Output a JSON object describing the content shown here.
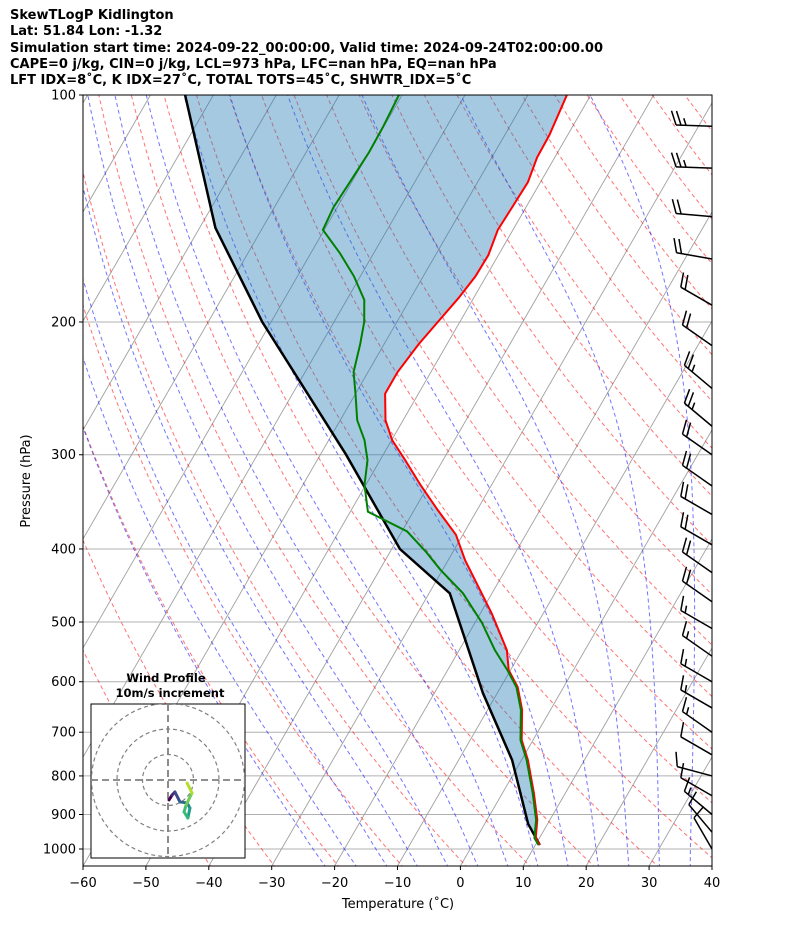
{
  "header": {
    "lines": [
      "SkewTLogP Kidlington",
      "Lat: 51.84   Lon: -1.32",
      "Simulation start time: 2024-09-22_00:00:00, Valid time: 2024-09-24T02:00:00.00",
      "CAPE=0 j/kg, CIN=0 j/kg, LCL=973 hPa, LFC=nan hPa, EQ=nan hPa",
      "LFT IDX=8˚C, K IDX=27˚C, TOTAL TOTS=45˚C, SHWTR_IDX=5˚C"
    ]
  },
  "chart_data": {
    "type": "line",
    "subtype": "skew-T log-P",
    "xlabel": "Temperature (˚C)",
    "ylabel": "Pressure (hPa)",
    "xlim": [
      -60,
      40
    ],
    "ylim": [
      1053,
      100
    ],
    "xticks": [
      "−60",
      "−50",
      "−40",
      "−30",
      "−20",
      "−10",
      "0",
      "10",
      "20",
      "30",
      "40"
    ],
    "xtick_values": [
      -60,
      -50,
      -40,
      -30,
      -20,
      -10,
      0,
      10,
      20,
      30,
      40
    ],
    "yticks": [
      "100",
      "200",
      "300",
      "400",
      "500",
      "600",
      "700",
      "800",
      "900",
      "1000"
    ],
    "ytick_values": [
      100,
      200,
      300,
      400,
      500,
      600,
      700,
      800,
      900,
      1000
    ],
    "grid": true,
    "colors": {
      "temperature": "#ff0000",
      "dewpoint": "#008000",
      "parcel": "#000000",
      "fill": "#1f77b4",
      "isotherm": "#a0a0a0",
      "dry_adiabat": "#ff0000",
      "moist_adiabat": "#0000ff"
    },
    "series": [
      {
        "name": "temperature",
        "p": [
          988,
          967,
          915,
          843,
          762,
          717,
          654,
          610,
          579,
          545,
          487,
          414,
          383,
          355,
          329,
          305,
          287,
          270,
          249,
          233,
          214,
          200,
          186,
          174,
          163,
          151,
          141,
          130.5,
          121,
          113,
          100
        ],
        "t": [
          10.7,
          9.4,
          8.0,
          5.0,
          1.0,
          -1.8,
          -4.5,
          -7.3,
          -10.3,
          -12.4,
          -18.2,
          -27.3,
          -31.1,
          -36.3,
          -41.3,
          -46.0,
          -49.9,
          -52.8,
          -55.3,
          -55.3,
          -54.5,
          -53.5,
          -52.4,
          -51.7,
          -51.6,
          -52.4,
          -52.2,
          -52.0,
          -52.8,
          -52.9,
          -53.8
        ]
      },
      {
        "name": "dewpoint",
        "p": [
          988,
          967,
          915,
          843,
          762,
          717,
          654,
          610,
          579,
          545,
          501,
          458,
          426,
          404,
          379,
          357,
          329,
          305,
          287,
          270,
          249,
          233,
          214,
          200,
          187,
          174,
          162,
          151,
          141,
          130,
          119,
          110,
          100
        ],
        "t": [
          10.5,
          9.2,
          7.8,
          4.8,
          0.8,
          -2.0,
          -4.7,
          -7.5,
          -10.5,
          -14.3,
          -18.9,
          -24.6,
          -30.4,
          -34.2,
          -39.2,
          -47.2,
          -50.2,
          -52.0,
          -54.3,
          -57.3,
          -60.0,
          -62.3,
          -63.8,
          -65.2,
          -67.2,
          -71.0,
          -75.4,
          -80.2,
          -80.6,
          -80.3,
          -80.0,
          -80.1,
          -80.5
        ]
      },
      {
        "name": "parcel",
        "p": [
          988,
          926,
          762,
          621,
          458,
          400,
          300,
          200,
          150,
          100
        ],
        "t": [
          10.7,
          6.9,
          -1.5,
          -12.3,
          -26.7,
          -38.7,
          -55.9,
          -81.4,
          -97.5,
          -114.5
        ]
      }
    ],
    "wind_barbs": {
      "units": "kt",
      "p": [
        110,
        125,
        145,
        165,
        190,
        215,
        245,
        275,
        300,
        330,
        360,
        395,
        430,
        470,
        510,
        555,
        600,
        650,
        700,
        750,
        800,
        850,
        900,
        950,
        1000
      ],
      "direction": [
        272,
        272,
        275,
        280,
        300,
        305,
        310,
        310,
        305,
        305,
        300,
        300,
        305,
        305,
        300,
        305,
        300,
        300,
        305,
        300,
        285,
        300,
        310,
        320,
        330
      ],
      "speed": [
        25,
        25,
        20,
        20,
        20,
        20,
        25,
        25,
        20,
        20,
        20,
        20,
        20,
        20,
        15,
        15,
        15,
        15,
        15,
        10,
        10,
        10,
        15,
        10,
        10
      ]
    },
    "hodograph": {
      "title": "Wind Profile",
      "subtitle": "10m/s increment",
      "ring_increment_ms": 10,
      "rings": [
        10,
        20,
        30
      ],
      "u": [
        0.4,
        1.6,
        2.7,
        4.7,
        7.5,
        8.6,
        7.8,
        6.3,
        7.1,
        9.4,
        7.5
      ],
      "v": [
        -7.8,
        -5.9,
        -4.7,
        -8.6,
        -9.0,
        -11.0,
        -14.9,
        -12.5,
        -9.8,
        -5.1,
        -1.2
      ]
    }
  }
}
